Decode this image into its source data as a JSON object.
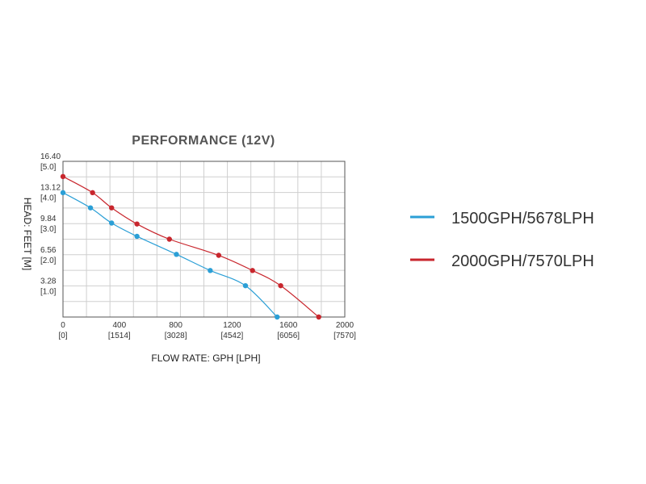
{
  "chart_data": {
    "type": "line",
    "title": "PERFORMANCE (12V)",
    "xlabel": "FLOW RATE: GPH [LPH]",
    "ylabel": "HEAD: FEET [M]",
    "xlim": [
      0,
      2000
    ],
    "ylim": [
      0,
      16.4
    ],
    "grid": true,
    "x_ticks": [
      {
        "value": 0,
        "label": "0",
        "sub": "[0]"
      },
      {
        "value": 400,
        "label": "400",
        "sub": "[1514]"
      },
      {
        "value": 800,
        "label": "800",
        "sub": "[3028]"
      },
      {
        "value": 1200,
        "label": "1200",
        "sub": "[4542]"
      },
      {
        "value": 1600,
        "label": "1600",
        "sub": "[6056]"
      },
      {
        "value": 2000,
        "label": "2000",
        "sub": "[7570]"
      }
    ],
    "y_ticks": [
      {
        "value": 3.28,
        "label": "3.28",
        "sub": "[1.0]"
      },
      {
        "value": 6.56,
        "label": "6.56",
        "sub": "[2.0]"
      },
      {
        "value": 9.84,
        "label": "9.84",
        "sub": "[3.0]"
      },
      {
        "value": 13.12,
        "label": "13.12",
        "sub": "[4.0]"
      },
      {
        "value": 16.4,
        "label": "16.40",
        "sub": "[5.0]"
      }
    ],
    "series": [
      {
        "name": "1500GPH/5678LPH",
        "color": "#2b9fd6",
        "x": [
          0,
          195,
          345,
          525,
          805,
          1045,
          1295,
          1520
        ],
        "y": [
          13.1,
          11.5,
          9.9,
          8.5,
          6.6,
          4.9,
          3.3,
          0
        ]
      },
      {
        "name": "2000GPH/7570LPH",
        "color": "#c8262d",
        "x": [
          0,
          210,
          345,
          525,
          755,
          1105,
          1345,
          1545,
          1815
        ],
        "y": [
          14.8,
          13.1,
          11.5,
          9.8,
          8.2,
          6.5,
          4.9,
          3.3,
          0
        ]
      }
    ]
  }
}
